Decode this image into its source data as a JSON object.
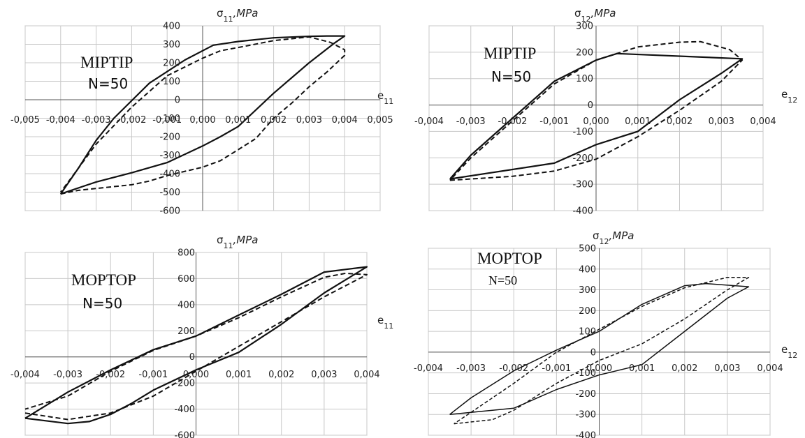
{
  "chart_data": [
    {
      "type": "line",
      "ylabel": "σ11,MPa",
      "ylabel_main": "σ",
      "ylabel_sub": "11",
      "ylabel_unit": ",MPa",
      "xlabel_main": "e",
      "xlabel_sub": "11",
      "xlim": [
        -0.005,
        0.005
      ],
      "ylim": [
        -600,
        400
      ],
      "xticks": [
        -0.005,
        -0.004,
        -0.003,
        -0.002,
        -0.001,
        0.0,
        0.001,
        0.002,
        0.003,
        0.004,
        0.005
      ],
      "xtick_labels": [
        "-0,005",
        "-0,004",
        "-0,003",
        "-0,002",
        "-0,001",
        "0,000",
        "0,001",
        "0,002",
        "0,003",
        "0,004",
        "0,005"
      ],
      "yticks": [
        -600,
        -500,
        -400,
        -300,
        -200,
        -100,
        0,
        100,
        200,
        300,
        400
      ],
      "ytick_labels": [
        "-600",
        "-500",
        "-400",
        "-300",
        "-200",
        "-100",
        "0",
        "100",
        "200",
        "300",
        "400"
      ],
      "model_label": "MIPTIP",
      "n_label": "N=50",
      "grid": true,
      "series": [
        {
          "style": "solid",
          "points": [
            [
              -0.004,
              -510
            ],
            [
              -0.003,
              -445
            ],
            [
              -0.002,
              -395
            ],
            [
              -0.001,
              -340
            ],
            [
              0.0,
              -250
            ],
            [
              0.0005,
              -200
            ],
            [
              0.001,
              -145
            ],
            [
              0.002,
              35
            ],
            [
              0.003,
              200
            ],
            [
              0.0037,
              305
            ],
            [
              0.004,
              345
            ],
            [
              0.0035,
              345
            ],
            [
              0.003,
              343
            ],
            [
              0.002,
              335
            ],
            [
              0.001,
              315
            ],
            [
              0.0003,
              295
            ],
            [
              -0.0005,
              215
            ],
            [
              -0.0015,
              90
            ],
            [
              -0.0025,
              -100
            ],
            [
              -0.003,
              -220
            ],
            [
              -0.0035,
              -370
            ],
            [
              -0.004,
              -510
            ]
          ]
        },
        {
          "style": "dashed",
          "points": [
            [
              -0.004,
              -510
            ],
            [
              -0.0035,
              -490
            ],
            [
              -0.003,
              -480
            ],
            [
              -0.002,
              -460
            ],
            [
              -0.0015,
              -440
            ],
            [
              -0.001,
              -410
            ],
            [
              0.0,
              -365
            ],
            [
              0.0005,
              -330
            ],
            [
              0.001,
              -270
            ],
            [
              0.0015,
              -210
            ],
            [
              0.002,
              -100
            ],
            [
              0.0025,
              -20
            ],
            [
              0.003,
              70
            ],
            [
              0.0035,
              150
            ],
            [
              0.004,
              240
            ],
            [
              0.004,
              270
            ],
            [
              0.0036,
              310
            ],
            [
              0.003,
              340
            ],
            [
              0.002,
              320
            ],
            [
              0.0012,
              290
            ],
            [
              0.0005,
              265
            ],
            [
              0.0,
              225
            ],
            [
              -0.001,
              130
            ],
            [
              -0.002,
              -40
            ],
            [
              -0.003,
              -240
            ],
            [
              -0.004,
              -500
            ]
          ]
        }
      ]
    },
    {
      "type": "line",
      "ylabel": "σ12,MPa",
      "ylabel_main": "σ",
      "ylabel_sub": "12",
      "ylabel_unit": ",MPa",
      "xlabel_main": "e",
      "xlabel_sub": "12",
      "xlim": [
        -0.004,
        0.004
      ],
      "ylim": [
        -400,
        300
      ],
      "xticks": [
        -0.004,
        -0.003,
        -0.002,
        -0.001,
        0.0,
        0.001,
        0.002,
        0.003,
        0.004
      ],
      "xtick_labels": [
        "-0,004",
        "-0,003",
        "-0,002",
        "-0,001",
        "0,000",
        "0,001",
        "0,002",
        "0,003",
        "0,004"
      ],
      "yticks": [
        -400,
        -300,
        -200,
        -100,
        0,
        100,
        200,
        300
      ],
      "ytick_labels": [
        "-400",
        "-300",
        "-200",
        "-100",
        "0",
        "100",
        "200",
        "300"
      ],
      "model_label": "MIPTIP",
      "n_label": "N=50",
      "grid": true,
      "series": [
        {
          "style": "solid",
          "points": [
            [
              -0.0035,
              -280
            ],
            [
              -0.001,
              -220
            ],
            [
              0.0,
              -150
            ],
            [
              0.001,
              -100
            ],
            [
              0.002,
              20
            ],
            [
              0.003,
              120
            ],
            [
              0.0035,
              175
            ],
            [
              0.0005,
              195
            ],
            [
              0.0,
              170
            ],
            [
              -0.001,
              90
            ],
            [
              -0.002,
              -50
            ],
            [
              -0.003,
              -190
            ],
            [
              -0.0035,
              -280
            ]
          ]
        },
        {
          "style": "dashed",
          "points": [
            [
              -0.0035,
              -285
            ],
            [
              -0.002,
              -270
            ],
            [
              -0.001,
              -250
            ],
            [
              0.0,
              -205
            ],
            [
              0.001,
              -120
            ],
            [
              0.002,
              -20
            ],
            [
              0.003,
              90
            ],
            [
              0.0035,
              170
            ],
            [
              0.0032,
              210
            ],
            [
              0.0025,
              240
            ],
            [
              0.002,
              238
            ],
            [
              0.001,
              220
            ],
            [
              0.0,
              170
            ],
            [
              -0.001,
              80
            ],
            [
              -0.002,
              -60
            ],
            [
              -0.003,
              -200
            ],
            [
              -0.0035,
              -285
            ]
          ]
        }
      ]
    },
    {
      "type": "line",
      "ylabel": "σ11,MPa",
      "ylabel_main": "σ",
      "ylabel_sub": "11",
      "ylabel_unit": ",MPa",
      "xlabel_main": "e",
      "xlabel_sub": "11",
      "xlim": [
        -0.004,
        0.004
      ],
      "ylim": [
        -600,
        800
      ],
      "xticks": [
        -0.004,
        -0.003,
        -0.002,
        -0.001,
        0.0,
        0.001,
        0.002,
        0.003,
        0.004
      ],
      "xtick_labels": [
        "-0,004",
        "-0,003",
        "-0,002",
        "-0,001",
        "0,000",
        "0,001",
        "0,002",
        "0,003",
        "0,004"
      ],
      "yticks": [
        -600,
        -400,
        -200,
        0,
        200,
        400,
        600,
        800
      ],
      "ytick_labels": [
        "-600",
        "-400",
        "-200",
        "0",
        "200",
        "400",
        "600",
        "800"
      ],
      "model_label": "MOPTOP",
      "n_label": "N=50",
      "grid": true,
      "series": [
        {
          "style": "solid",
          "points": [
            [
              -0.004,
              -470
            ],
            [
              -0.003,
              -510
            ],
            [
              -0.0025,
              -495
            ],
            [
              -0.002,
              -440
            ],
            [
              -0.0015,
              -355
            ],
            [
              -0.001,
              -255
            ],
            [
              0.0,
              -100
            ],
            [
              0.001,
              35
            ],
            [
              0.002,
              250
            ],
            [
              0.003,
              490
            ],
            [
              0.004,
              690
            ],
            [
              0.0035,
              670
            ],
            [
              0.003,
              650
            ],
            [
              0.002,
              480
            ],
            [
              0.001,
              320
            ],
            [
              0.0,
              160
            ],
            [
              -0.001,
              55
            ],
            [
              -0.002,
              -100
            ],
            [
              -0.003,
              -270
            ],
            [
              -0.004,
              -470
            ]
          ]
        },
        {
          "style": "dashed",
          "points": [
            [
              -0.004,
              -430
            ],
            [
              -0.003,
              -480
            ],
            [
              -0.002,
              -430
            ],
            [
              -0.001,
              -300
            ],
            [
              0.0,
              -110
            ],
            [
              0.001,
              80
            ],
            [
              0.002,
              270
            ],
            [
              0.003,
              460
            ],
            [
              0.004,
              630
            ],
            [
              0.0035,
              640
            ],
            [
              0.003,
              610
            ],
            [
              0.002,
              460
            ],
            [
              0.001,
              300
            ],
            [
              0.0,
              160
            ],
            [
              -0.001,
              50
            ],
            [
              -0.002,
              -110
            ],
            [
              -0.003,
              -300
            ],
            [
              -0.004,
              -400
            ]
          ]
        }
      ]
    },
    {
      "type": "line",
      "ylabel": "σ12,MPa",
      "ylabel_main": "σ",
      "ylabel_sub": "12",
      "ylabel_unit": ",MPa",
      "xlabel_main": "e",
      "xlabel_sub": "12",
      "xlim": [
        -0.004,
        0.004
      ],
      "ylim": [
        -400,
        500
      ],
      "xticks": [
        -0.004,
        -0.003,
        -0.002,
        -0.001,
        0.0,
        0.001,
        0.002,
        0.003,
        0.004
      ],
      "xtick_labels": [
        "-0,004",
        "-0,003",
        "-0,002",
        "-0,001",
        "0,000",
        "0,001",
        "0,002",
        "0,003",
        "0,004"
      ],
      "yticks": [
        -400,
        -300,
        -200,
        -100,
        0,
        100,
        200,
        300,
        400,
        500
      ],
      "ytick_labels": [
        "-400",
        "-300",
        "-200",
        "-100",
        "0",
        "100",
        "200",
        "300",
        "400",
        "500"
      ],
      "model_label": "MOPTOP",
      "n_label": "N=50",
      "grid": true,
      "series": [
        {
          "style": "solid",
          "points": [
            [
              -0.0035,
              -300
            ],
            [
              -0.002,
              -270
            ],
            [
              -0.001,
              -180
            ],
            [
              0.0,
              -110
            ],
            [
              0.001,
              -60
            ],
            [
              0.002,
              100
            ],
            [
              0.003,
              260
            ],
            [
              0.0035,
              315
            ],
            [
              0.0025,
              330
            ],
            [
              0.002,
              320
            ],
            [
              0.001,
              230
            ],
            [
              0.0,
              100
            ],
            [
              -0.001,
              10
            ],
            [
              -0.002,
              -90
            ],
            [
              -0.003,
              -220
            ],
            [
              -0.0035,
              -300
            ]
          ]
        },
        {
          "style": "dashed",
          "points": [
            [
              -0.0034,
              -345
            ],
            [
              -0.0025,
              -325
            ],
            [
              -0.002,
              -280
            ],
            [
              -0.001,
              -150
            ],
            [
              0.0,
              -40
            ],
            [
              0.001,
              40
            ],
            [
              0.002,
              160
            ],
            [
              0.003,
              300
            ],
            [
              0.0035,
              360
            ],
            [
              0.003,
              360
            ],
            [
              0.002,
              310
            ],
            [
              0.001,
              220
            ],
            [
              0.0,
              110
            ],
            [
              -0.001,
              0
            ],
            [
              -0.002,
              -150
            ],
            [
              -0.003,
              -290
            ],
            [
              -0.0034,
              -345
            ]
          ]
        }
      ]
    }
  ]
}
